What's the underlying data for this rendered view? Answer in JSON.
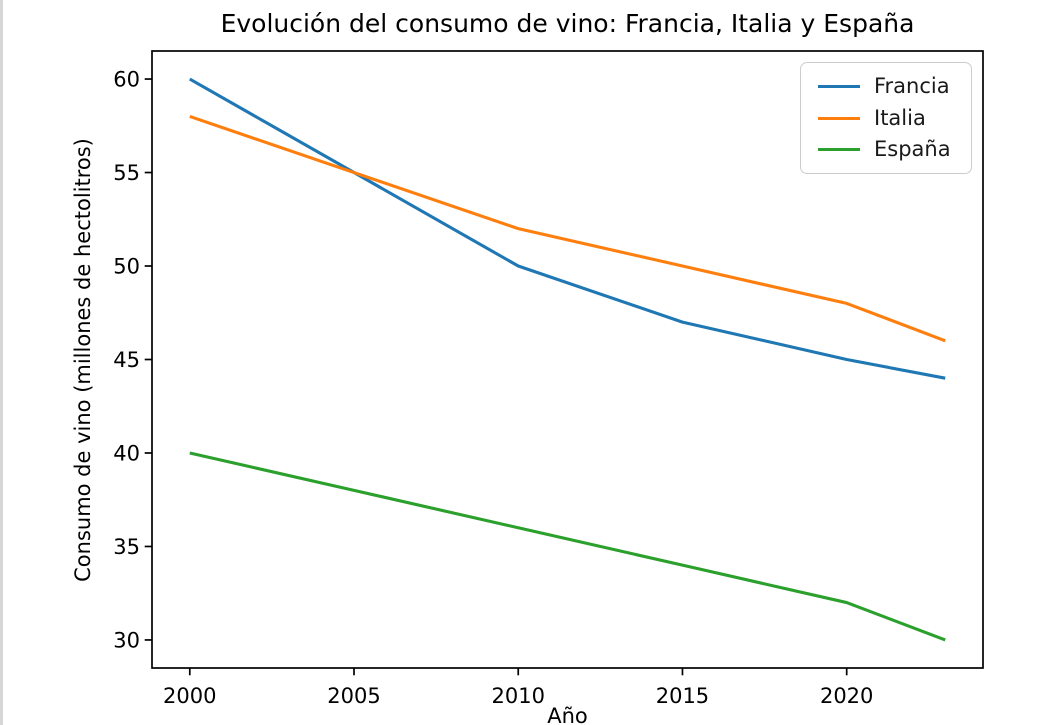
{
  "chart_data": {
    "type": "line",
    "title": "Evolución del consumo de vino: Francia, Italia y España",
    "xlabel": "Año",
    "ylabel": "Consumo de vino (millones de hectolitros)",
    "x": [
      2000,
      2005,
      2010,
      2015,
      2020,
      2023
    ],
    "series": [
      {
        "name": "Francia",
        "color": "#1f77b4",
        "values": [
          60,
          55,
          50,
          47,
          45,
          44
        ]
      },
      {
        "name": "Italia",
        "color": "#ff7f0e",
        "values": [
          58,
          55,
          52,
          50,
          48,
          46
        ]
      },
      {
        "name": "España",
        "color": "#2ca02c",
        "values": [
          40,
          38,
          36,
          34,
          32,
          30
        ]
      }
    ],
    "xlim": [
      1998.85,
      2024.15
    ],
    "ylim": [
      28.5,
      61.5
    ],
    "xticks": [
      2000,
      2005,
      2010,
      2015,
      2020
    ],
    "yticks": [
      30,
      35,
      40,
      45,
      50,
      55,
      60
    ],
    "grid": false,
    "legend_position": "upper right",
    "axis_color": "#000000",
    "background_color": "#ffffff"
  }
}
